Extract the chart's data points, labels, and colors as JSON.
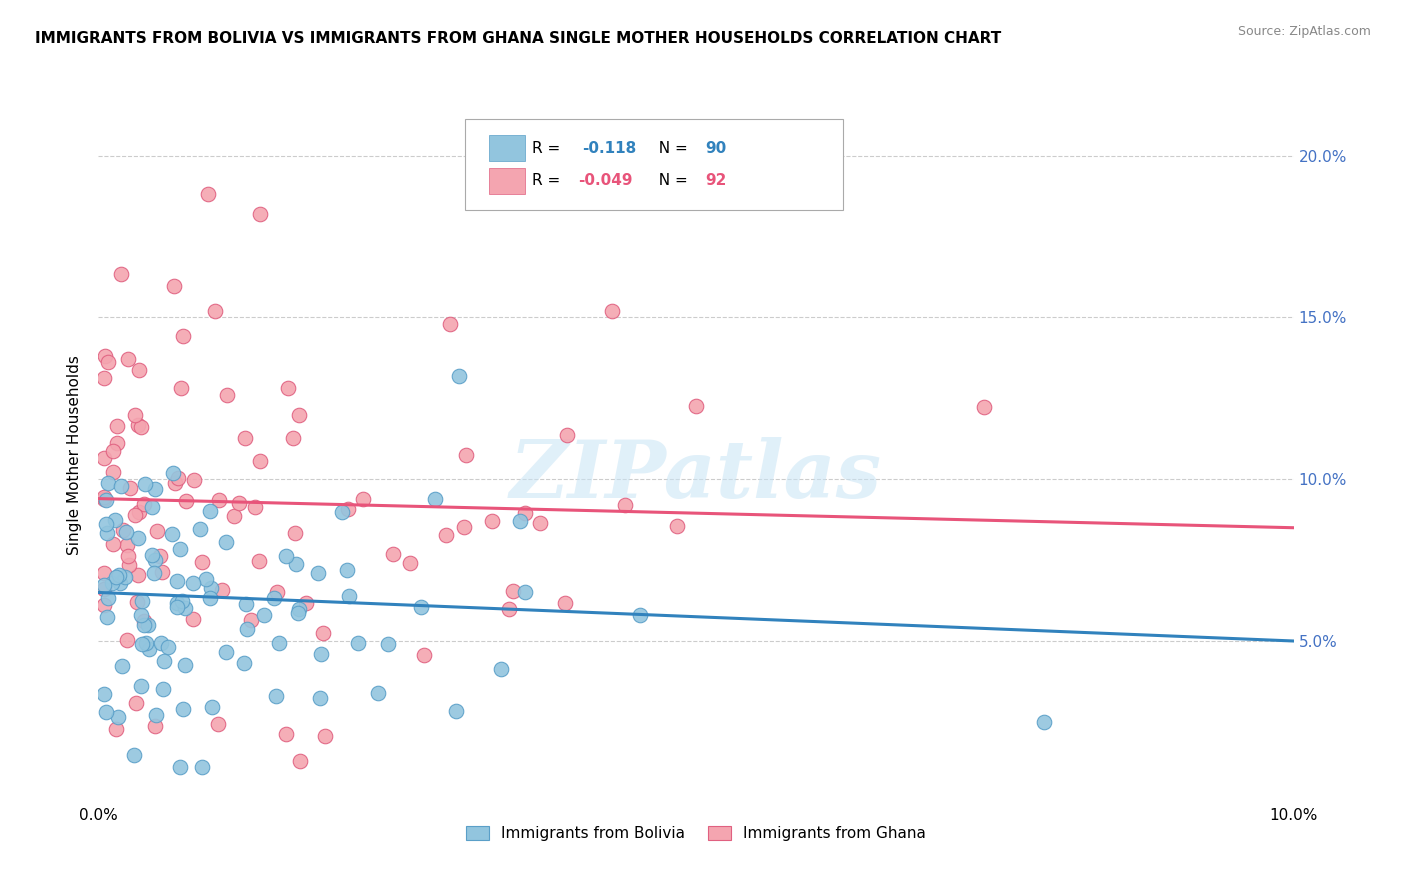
{
  "title": "IMMIGRANTS FROM BOLIVIA VS IMMIGRANTS FROM GHANA SINGLE MOTHER HOUSEHOLDS CORRELATION CHART",
  "source": "Source: ZipAtlas.com",
  "ylabel": "Single Mother Households",
  "y_ticks": [
    0.05,
    0.1,
    0.15,
    0.2
  ],
  "y_tick_labels": [
    "5.0%",
    "10.0%",
    "15.0%",
    "20.0%"
  ],
  "xlim": [
    0.0,
    0.1
  ],
  "ylim": [
    0.0,
    0.215
  ],
  "legend_r_bolivia": "-0.118",
  "legend_n_bolivia": "90",
  "legend_r_ghana": "-0.049",
  "legend_n_ghana": "92",
  "color_bolivia": "#92c5de",
  "color_ghana": "#f4a5b0",
  "edge_bolivia": "#5a9fc8",
  "edge_ghana": "#e06080",
  "trendline_color_bolivia": "#3182bd",
  "trendline_color_ghana": "#e8547a",
  "right_axis_color": "#4472c4",
  "watermark": "ZIPatlas",
  "bolivia_trend_x0": 0.0,
  "bolivia_trend_y0": 0.065,
  "bolivia_trend_x1": 0.1,
  "bolivia_trend_y1": 0.05,
  "ghana_trend_x0": 0.0,
  "ghana_trend_y0": 0.094,
  "ghana_trend_x1": 0.1,
  "ghana_trend_y1": 0.085,
  "bolivia_seed": 77,
  "ghana_seed": 88
}
